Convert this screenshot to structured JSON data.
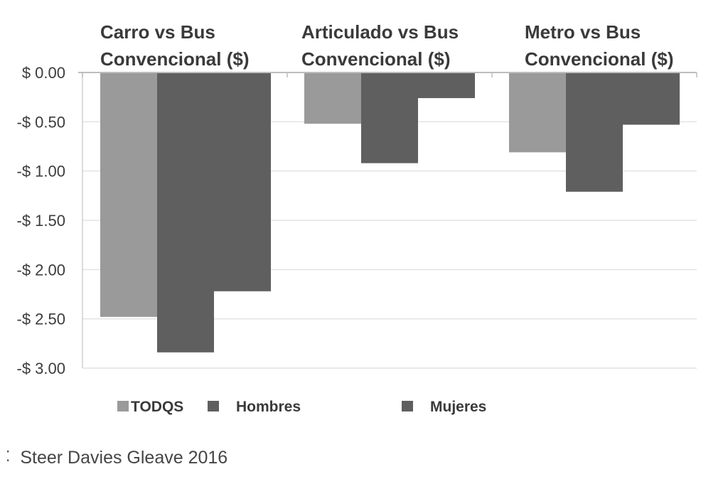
{
  "chart_data": {
    "type": "bar",
    "categories": [
      "Carro vs Bus Convencional ($)",
      "Articulado vs Bus Convencional ($)",
      "Metro vs Bus Convencional ($)"
    ],
    "category_lines": [
      [
        "Carro vs Bus",
        "Convencional ($)"
      ],
      [
        "Articulado vs Bus",
        "Convencional ($)"
      ],
      [
        "Metro vs Bus",
        "Convencional ($)"
      ]
    ],
    "series": [
      {
        "name": "TODQS",
        "values": [
          -2.48,
          -0.52,
          -0.81
        ],
        "color": "#9a9a9a"
      },
      {
        "name": "Hombres",
        "values": [
          -2.84,
          -0.92,
          -1.21
        ],
        "color": "#5f5f5f"
      },
      {
        "name": "Mujeres",
        "values": [
          -2.22,
          -0.26,
          -0.53
        ],
        "color": "#5f5f5f"
      }
    ],
    "ylim": [
      -3.0,
      0.0
    ],
    "yticks": [
      0.0,
      -0.5,
      -1.0,
      -1.5,
      -2.0,
      -2.5,
      -3.0
    ],
    "ytick_labels": [
      "$ 0.00",
      "-$ 0.50",
      "-$ 1.00",
      "-$ 1.50",
      "-$ 2.00",
      "-$ 2.50",
      "-$ 3.00"
    ],
    "grid": true,
    "legend_position": "bottom",
    "xlabel": "",
    "ylabel": "",
    "title": ""
  },
  "footer": {
    "prefix": "⁚",
    "source_text": "Steer Davies Gleave 2016"
  }
}
